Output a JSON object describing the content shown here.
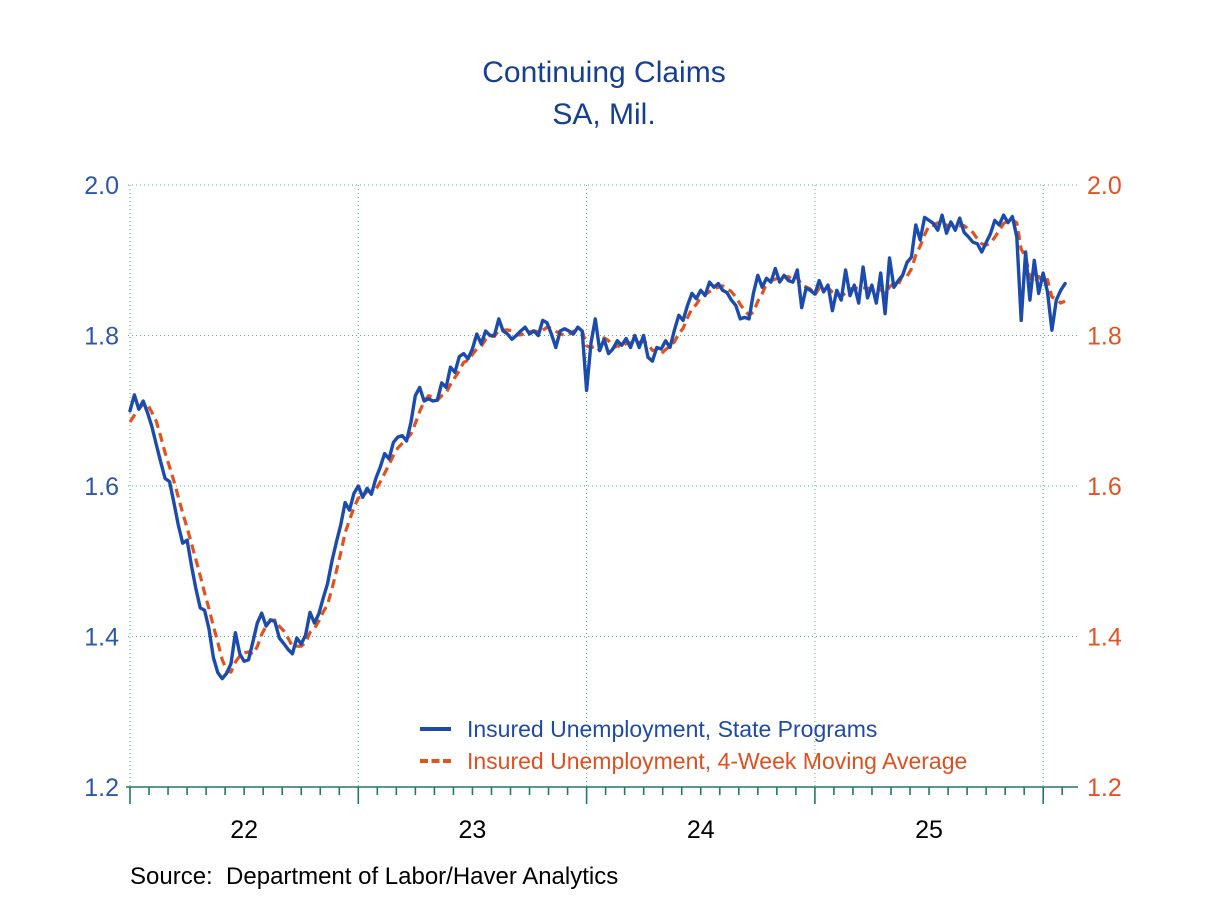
{
  "title": "Continuing Claims",
  "subtitle": "SA, Mil.",
  "source_text": "Source:  Department of Labor/Haver Analytics",
  "colors": {
    "title": "#16408f",
    "state_programs_line": "#1b4cad",
    "moving_average_line": "#e2521e",
    "left_axis_labels": "#2c57a8",
    "right_axis_labels": "#e25321",
    "gridlines": "#4fae8a",
    "axis_line": "#1e7c61",
    "year_labels": "#000000",
    "source_text": "#000000"
  },
  "chart_data": {
    "type": "line",
    "title": "Continuing Claims",
    "subtitle": "SA, Mil.",
    "x_unit": "weekly observations",
    "x_start": "2022-01",
    "x_end": "2026-01",
    "x_tick_labels": [
      "22",
      "23",
      "24",
      "25"
    ],
    "y_ticks": [
      "2.0",
      "1.8",
      "1.6",
      "1.4",
      "1.2"
    ],
    "ylim": [
      1.2,
      2.0
    ],
    "dual_axis": "same scale left (blue) and right (orange)",
    "grid": "dotted green horizontal at 0.2 steps, vertical at year boundaries",
    "legend_position": "inside bottom center",
    "series": [
      {
        "name": "Insured Unemployment, State Programs",
        "color": "#1b4cad",
        "style": "solid",
        "values": [
          1.7,
          1.721,
          1.702,
          1.713,
          1.697,
          1.679,
          1.655,
          1.632,
          1.61,
          1.606,
          1.578,
          1.548,
          1.524,
          1.528,
          1.494,
          1.464,
          1.438,
          1.435,
          1.41,
          1.372,
          1.352,
          1.344,
          1.351,
          1.364,
          1.405,
          1.377,
          1.367,
          1.369,
          1.393,
          1.418,
          1.431,
          1.414,
          1.422,
          1.42,
          1.398,
          1.391,
          1.383,
          1.377,
          1.398,
          1.39,
          1.402,
          1.432,
          1.418,
          1.43,
          1.451,
          1.47,
          1.5,
          1.525,
          1.548,
          1.578,
          1.568,
          1.59,
          1.6,
          1.585,
          1.597,
          1.589,
          1.61,
          1.625,
          1.643,
          1.636,
          1.658,
          1.665,
          1.667,
          1.66,
          1.685,
          1.72,
          1.731,
          1.713,
          1.716,
          1.713,
          1.714,
          1.737,
          1.731,
          1.758,
          1.751,
          1.772,
          1.776,
          1.769,
          1.782,
          1.802,
          1.789,
          1.806,
          1.8,
          1.8,
          1.822,
          1.806,
          1.802,
          1.795,
          1.8,
          1.806,
          1.811,
          1.802,
          1.806,
          1.8,
          1.82,
          1.817,
          1.802,
          1.784,
          1.806,
          1.809,
          1.806,
          1.802,
          1.811,
          1.806,
          1.727,
          1.79,
          1.822,
          1.78,
          1.795,
          1.776,
          1.782,
          1.793,
          1.787,
          1.796,
          1.784,
          1.8,
          1.784,
          1.8,
          1.771,
          1.766,
          1.784,
          1.782,
          1.793,
          1.784,
          1.807,
          1.827,
          1.82,
          1.84,
          1.856,
          1.849,
          1.86,
          1.853,
          1.871,
          1.864,
          1.869,
          1.86,
          1.857,
          1.847,
          1.84,
          1.822,
          1.824,
          1.822,
          1.856,
          1.88,
          1.864,
          1.876,
          1.871,
          1.889,
          1.871,
          1.88,
          1.873,
          1.871,
          1.887,
          1.837,
          1.863,
          1.86,
          1.855,
          1.873,
          1.858,
          1.867,
          1.833,
          1.86,
          1.847,
          1.887,
          1.853,
          1.867,
          1.843,
          1.891,
          1.85,
          1.867,
          1.843,
          1.883,
          1.829,
          1.903,
          1.864,
          1.873,
          1.88,
          1.897,
          1.904,
          1.947,
          1.927,
          1.957,
          1.953,
          1.949,
          1.94,
          1.96,
          1.936,
          1.951,
          1.94,
          1.956,
          1.937,
          1.931,
          1.924,
          1.922,
          1.911,
          1.923,
          1.935,
          1.953,
          1.947,
          1.96,
          1.95,
          1.958,
          1.931,
          1.82,
          1.911,
          1.847,
          1.9,
          1.856,
          1.883,
          1.858,
          1.807,
          1.847,
          1.86,
          1.869
        ]
      },
      {
        "name": "Insured Unemployment, 4-Week Moving Average",
        "color": "#e2521e",
        "style": "dashed",
        "derived_from": "Insured Unemployment, State Programs",
        "ma_window": 4,
        "ma_seed": [
          1.67,
          1.685
        ]
      }
    ]
  }
}
